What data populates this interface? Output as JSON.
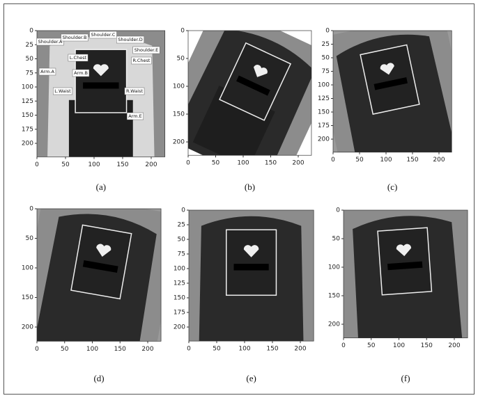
{
  "figure": {
    "panels": [
      {
        "caption": "(a)",
        "xticks": [
          0,
          50,
          100,
          150,
          200
        ],
        "yticks": [
          0,
          25,
          50,
          75,
          100,
          125,
          150,
          175,
          200
        ],
        "annotations": [
          "Shoulder.A",
          "Shoulder.B",
          "Shoulder.C",
          "Shoulder.D",
          "Shoulder.E",
          "L.Chest",
          "R.Chest",
          "Arm.A",
          "Arm.B",
          "L.Waist",
          "R.Waist",
          "Arm.E"
        ]
      },
      {
        "caption": "(b)",
        "xticks": [
          0,
          50,
          100,
          150,
          200
        ],
        "yticks": [
          0,
          50,
          100,
          150,
          200
        ]
      },
      {
        "caption": "(c)",
        "xticks": [
          0,
          50,
          100,
          150,
          200
        ],
        "yticks": [
          0,
          25,
          50,
          75,
          100,
          125,
          150,
          175,
          200
        ]
      },
      {
        "caption": "(d)",
        "xticks": [
          0,
          50,
          100,
          150,
          200
        ],
        "yticks": [
          0,
          50,
          100,
          150,
          200
        ]
      },
      {
        "caption": "(e)",
        "xticks": [
          0,
          50,
          100,
          150,
          200
        ],
        "yticks": [
          0,
          25,
          50,
          75,
          100,
          125,
          150,
          175,
          200
        ]
      },
      {
        "caption": "(f)",
        "xticks": [
          0,
          50,
          100,
          150,
          200
        ],
        "yticks": [
          0,
          50,
          100,
          150,
          200
        ]
      }
    ]
  }
}
